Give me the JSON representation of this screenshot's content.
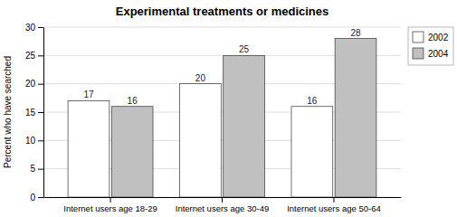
{
  "chart_data": {
    "type": "bar",
    "title": "Experimental treatments or medicines",
    "categories": [
      "Internet users age 18-29",
      "Internet users age 30-49",
      "Internet users age 50-64"
    ],
    "series": [
      {
        "name": "2002",
        "color": "#ffffff",
        "values": [
          17,
          20,
          16
        ]
      },
      {
        "name": "2004",
        "color": "#c0c0c0",
        "values": [
          16,
          25,
          28
        ]
      }
    ],
    "ylabel": "Percent who have searched",
    "ylim": [
      0,
      30
    ],
    "yticks": [
      0,
      5,
      10,
      15,
      20,
      25,
      30
    ],
    "grid": true,
    "legend": "right",
    "data_labels": true
  }
}
